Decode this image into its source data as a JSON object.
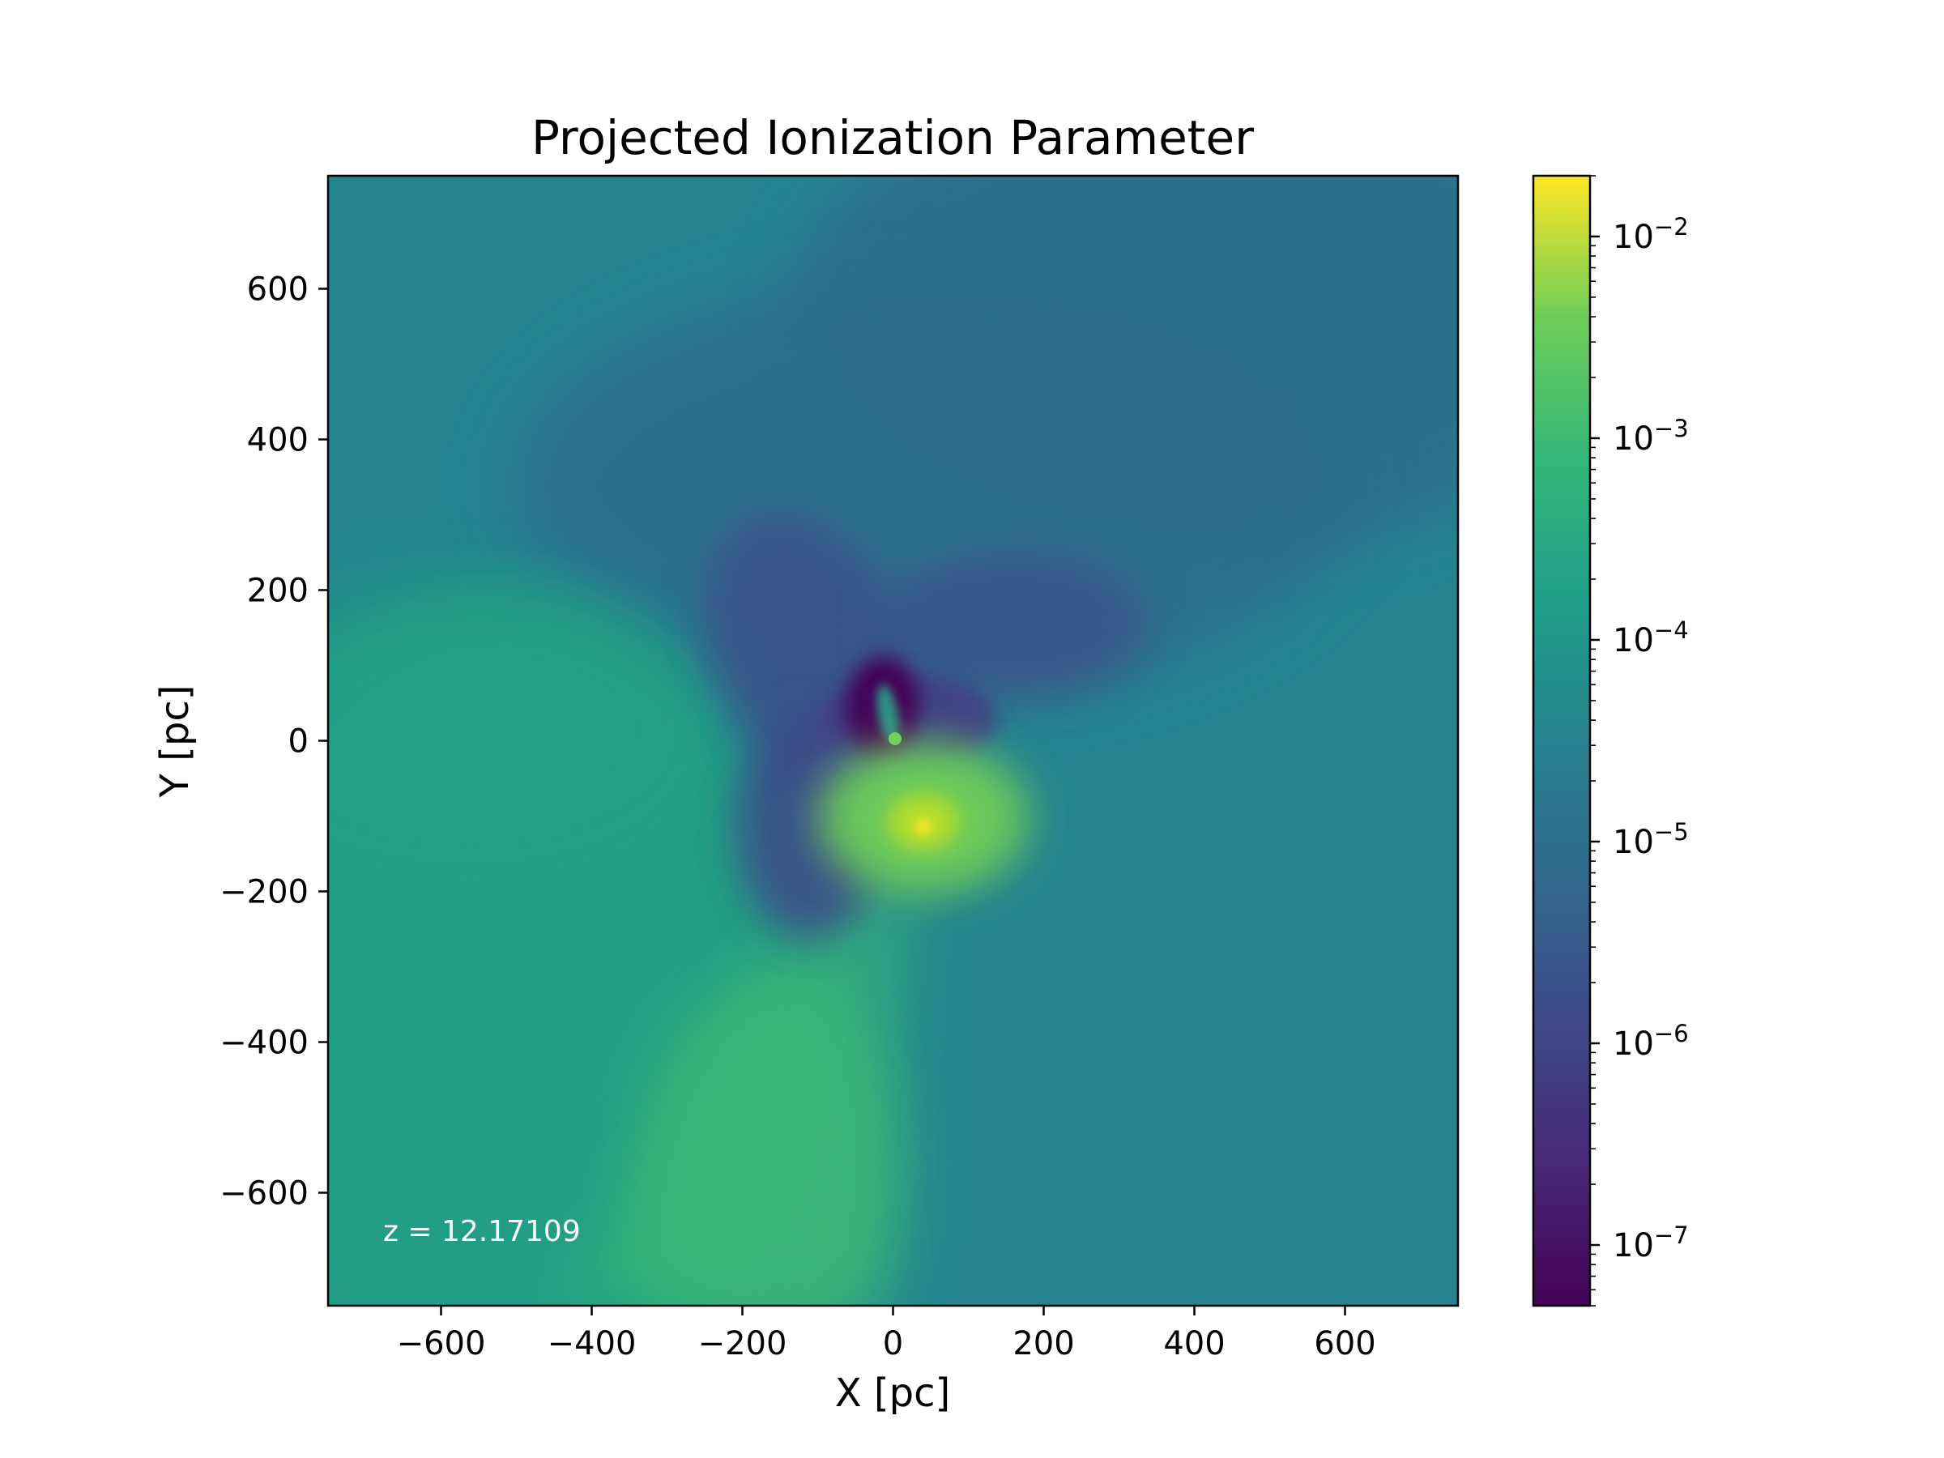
{
  "chart_data": {
    "type": "heatmap",
    "title": "Projected Ionization Parameter",
    "xlabel": "X [pc]",
    "ylabel": "Y [pc]",
    "xlim": [
      -750,
      750
    ],
    "ylim": [
      -750,
      750
    ],
    "x_ticks": [
      -600,
      -400,
      -200,
      0,
      200,
      400,
      600
    ],
    "y_ticks": [
      -600,
      -400,
      -200,
      0,
      200,
      400,
      600
    ],
    "x_tick_labels": [
      "−600",
      "−400",
      "−200",
      "0",
      "200",
      "400",
      "600"
    ],
    "y_tick_labels": [
      "−600",
      "−400",
      "−200",
      "0",
      "200",
      "400",
      "600"
    ],
    "annotation": "z = 12.17109",
    "colorbar": {
      "scale": "log",
      "colormap": "viridis",
      "range": [
        5e-08,
        0.02
      ],
      "ticks": [
        1e-07,
        1e-06,
        1e-05,
        0.0001,
        0.001,
        0.01
      ],
      "tick_labels": [
        {
          "base": "10",
          "exp": "−7"
        },
        {
          "base": "10",
          "exp": "−6"
        },
        {
          "base": "10",
          "exp": "−5"
        },
        {
          "base": "10",
          "exp": "−4"
        },
        {
          "base": "10",
          "exp": "−3"
        },
        {
          "base": "10",
          "exp": "−2"
        }
      ]
    },
    "field_features": [
      {
        "name": "background",
        "log10_value": -4.7
      },
      {
        "name": "dark-lobe-center",
        "x": -20,
        "y": 50,
        "log10_value": -7.0
      },
      {
        "name": "bright-core",
        "x": 35,
        "y": -110,
        "log10_value": -2.0
      },
      {
        "name": "bright-outflow-south",
        "x": -130,
        "y": -550,
        "log10_value": -3.5
      }
    ]
  }
}
